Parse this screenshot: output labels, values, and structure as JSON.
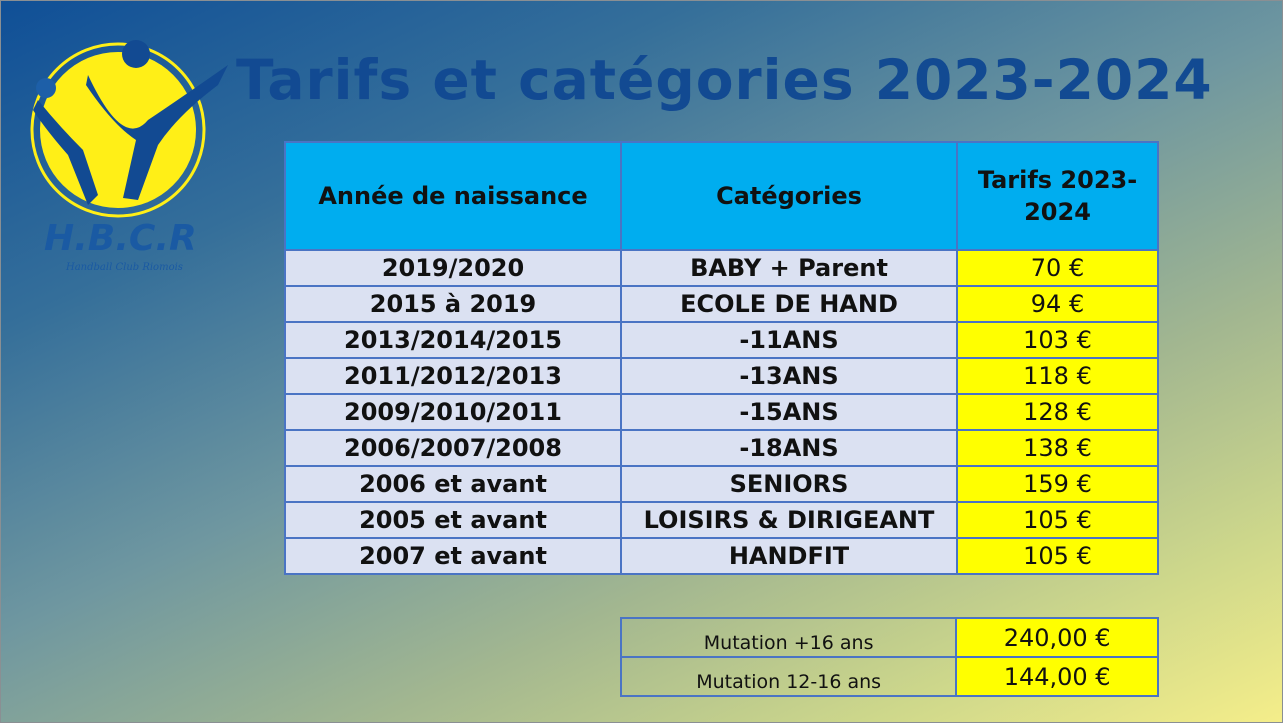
{
  "logo": {
    "text": "H.B.C.R",
    "subtitle": "Handball Club Riomois",
    "colors": {
      "ring": "#ffef17",
      "figure": "#124a92"
    }
  },
  "title": "Tarifs et catégories 2023-2024",
  "table": {
    "headers": [
      "Année de naissance",
      "Catégories",
      "Tarifs 2023-2024"
    ],
    "rows": [
      {
        "annee": "2019/2020",
        "categorie": "BABY + Parent",
        "tarif": "70 €"
      },
      {
        "annee": "2015 à 2019",
        "categorie": "ECOLE DE HAND",
        "tarif": "94 €"
      },
      {
        "annee": "2013/2014/2015",
        "categorie": "-11ANS",
        "tarif": "103 €"
      },
      {
        "annee": "2011/2012/2013",
        "categorie": "-13ANS",
        "tarif": "118 €"
      },
      {
        "annee": "2009/2010/2011",
        "categorie": "-15ANS",
        "tarif": "128 €"
      },
      {
        "annee": "2006/2007/2008",
        "categorie": "-18ANS",
        "tarif": "138 €"
      },
      {
        "annee": "2006 et avant",
        "categorie": "SENIORS",
        "tarif": "159 €"
      },
      {
        "annee": "2005 et avant",
        "categorie": "LOISIRS & DIRIGEANT",
        "tarif": "105 €"
      },
      {
        "annee": "2007 et avant",
        "categorie": "HANDFIT",
        "tarif": "105 €"
      }
    ]
  },
  "mutations": [
    {
      "label": "Mutation +16 ans",
      "tarif": "240,00 €"
    },
    {
      "label": "Mutation 12-16 ans",
      "tarif": "144,00 €"
    }
  ],
  "colors": {
    "header_bg": "#00adef",
    "row_bg": "#dbe1f2",
    "price_bg": "#ffff00",
    "title": "#124a92",
    "border": "#4a74c4"
  }
}
